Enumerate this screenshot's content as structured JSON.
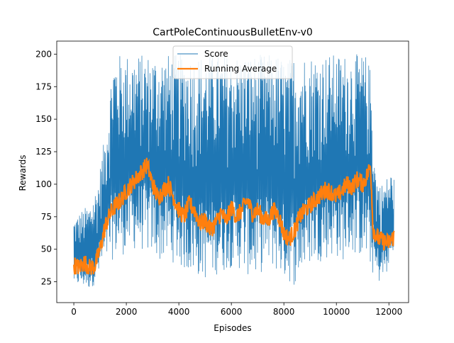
{
  "chart_data": {
    "type": "line",
    "title": "CartPoleContinuousBulletEnv-v0",
    "xlabel": "Episodes",
    "ylabel": "Rewards",
    "xlim": [
      -650,
      12750
    ],
    "ylim": [
      9,
      210
    ],
    "xticks": [
      0,
      2000,
      4000,
      6000,
      8000,
      10000,
      12000
    ],
    "yticks": [
      25,
      50,
      75,
      100,
      125,
      150,
      175,
      200
    ],
    "legend_position": "top-center",
    "grid": false,
    "series": [
      {
        "name": "Score",
        "color": "#1f77b4",
        "style": "thin noisy line between a per-episode low and high envelope",
        "x": [
          0,
          300,
          600,
          900,
          1200,
          1500,
          1800,
          2100,
          2400,
          2700,
          3000,
          3300,
          3600,
          3900,
          4200,
          4500,
          4800,
          5100,
          5400,
          5700,
          6000,
          6300,
          6600,
          6900,
          7200,
          7500,
          7800,
          8100,
          8400,
          8700,
          9000,
          9300,
          9600,
          9900,
          10200,
          10500,
          10800,
          11100,
          11300,
          11500,
          11700,
          11900,
          12100,
          12200
        ],
        "low": [
          22,
          20,
          19,
          25,
          38,
          42,
          45,
          47,
          50,
          48,
          45,
          40,
          42,
          38,
          33,
          30,
          28,
          26,
          30,
          32,
          36,
          34,
          30,
          27,
          33,
          37,
          30,
          25,
          22,
          30,
          38,
          40,
          42,
          45,
          40,
          46,
          45,
          42,
          35,
          25,
          24,
          30,
          40,
          45
        ],
        "high": [
          74,
          80,
          85,
          100,
          140,
          200,
          200,
          200,
          200,
          200,
          200,
          200,
          200,
          200,
          200,
          200,
          200,
          200,
          200,
          200,
          200,
          200,
          200,
          200,
          200,
          200,
          200,
          195,
          200,
          200,
          200,
          200,
          200,
          200,
          200,
          200,
          200,
          200,
          190,
          110,
          100,
          105,
          110,
          105
        ]
      },
      {
        "name": "Running Average",
        "color": "#ff7f0e",
        "style": "thick line",
        "x": [
          0,
          200,
          400,
          600,
          800,
          1000,
          1200,
          1400,
          1600,
          1800,
          2000,
          2200,
          2400,
          2600,
          2800,
          3000,
          3200,
          3400,
          3600,
          3800,
          4000,
          4200,
          4400,
          4600,
          4800,
          5000,
          5200,
          5400,
          5600,
          5800,
          6000,
          6200,
          6400,
          6600,
          6800,
          7000,
          7200,
          7400,
          7600,
          7800,
          8000,
          8200,
          8400,
          8600,
          8800,
          9000,
          9200,
          9400,
          9600,
          9800,
          10000,
          10200,
          10400,
          10600,
          10800,
          11000,
          11200,
          11300,
          11400,
          11600,
          11800,
          12000,
          12200
        ],
        "y": [
          38,
          36,
          40,
          36,
          37,
          50,
          68,
          78,
          84,
          88,
          95,
          100,
          105,
          110,
          115,
          100,
          90,
          95,
          100,
          90,
          80,
          75,
          85,
          80,
          70,
          72,
          65,
          70,
          78,
          72,
          82,
          75,
          80,
          88,
          78,
          80,
          74,
          72,
          80,
          76,
          62,
          58,
          64,
          75,
          80,
          84,
          88,
          92,
          96,
          94,
          90,
          95,
          100,
          98,
          104,
          100,
          108,
          115,
          65,
          58,
          56,
          55,
          60
        ]
      }
    ]
  }
}
